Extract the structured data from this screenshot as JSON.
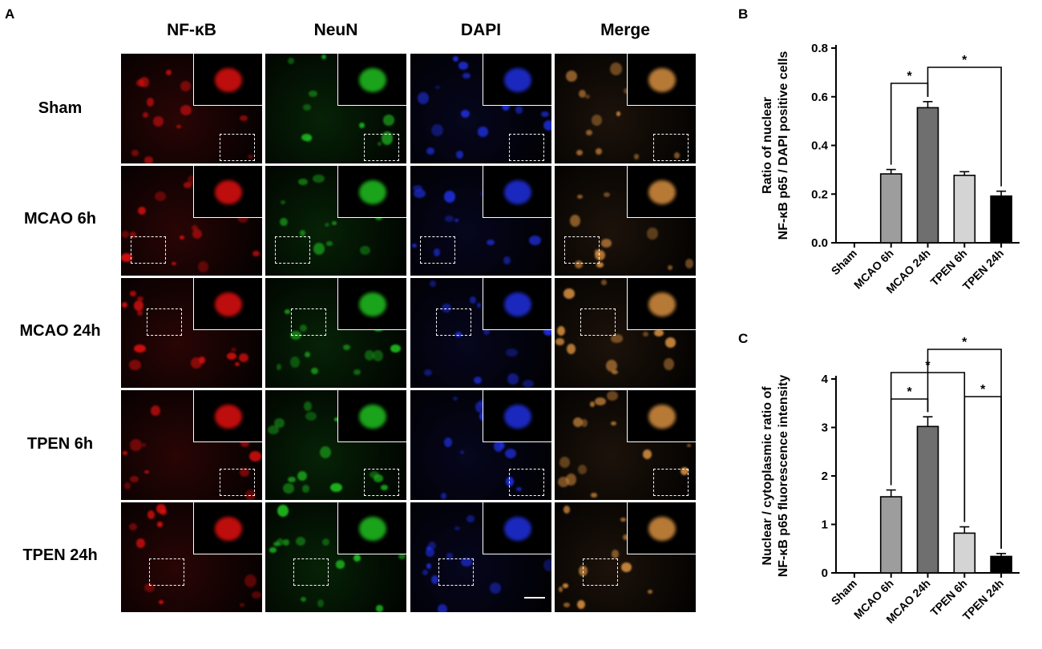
{
  "panel_letters": [
    "A",
    "B",
    "C"
  ],
  "micrograph": {
    "columns": [
      "NF-κB",
      "NeuN",
      "DAPI",
      "Merge"
    ],
    "rows": [
      "Sham",
      "MCAO 6h",
      "MCAO 24h",
      "TPEN 6h",
      "TPEN 24h"
    ],
    "channel_colors": {
      "NF-κB": "#e01010",
      "NeuN": "#20c020",
      "DAPI": "#2030e0",
      "Merge": "#d89040"
    }
  },
  "chart_data": [
    {
      "type": "bar",
      "panel": "B",
      "categories": [
        "Sham",
        "MCAO 6h",
        "MCAO 24h",
        "TPEN 6h",
        "TPEN 24h"
      ],
      "values": [
        0,
        0.283,
        0.555,
        0.277,
        0.192
      ],
      "errors": [
        0,
        0.018,
        0.025,
        0.015,
        0.02
      ],
      "colors": [
        "#ffffff",
        "#9d9d9d",
        "#6f6f6f",
        "#d4d4d4",
        "#000000"
      ],
      "ylabel_lines": [
        "Ratio of nuclear",
        "NF-κB p65 / DAPI positive cells"
      ],
      "ylim": [
        0,
        0.8
      ],
      "yticks": [
        "0.0",
        "0.2",
        "0.4",
        "0.6",
        "0.8"
      ],
      "significance": [
        {
          "from": 1,
          "to": 2,
          "label": "*"
        },
        {
          "from": 2,
          "to": 4,
          "label": "*"
        }
      ]
    },
    {
      "type": "bar",
      "panel": "C",
      "categories": [
        "Sham",
        "MCAO 6h",
        "MCAO 24h",
        "TPEN 6h",
        "TPEN 24h"
      ],
      "values": [
        0,
        1.57,
        3.02,
        0.82,
        0.34
      ],
      "errors": [
        0,
        0.14,
        0.2,
        0.13,
        0.06
      ],
      "colors": [
        "#ffffff",
        "#9d9d9d",
        "#6f6f6f",
        "#d4d4d4",
        "#000000"
      ],
      "ylabel_lines": [
        "Nuclear / cytoplasmic ratio of",
        "NF-κB p65 fluorescence intensity"
      ],
      "ylim": [
        0,
        4
      ],
      "yticks": [
        "0",
        "1",
        "2",
        "3",
        "4"
      ],
      "significance": [
        {
          "from": 1,
          "to": 2,
          "label": "*"
        },
        {
          "from": 1,
          "to": 3,
          "label": "*"
        },
        {
          "from": 3,
          "to": 4,
          "label": "*"
        },
        {
          "from": 2,
          "to": 4,
          "label": "*"
        }
      ]
    }
  ]
}
